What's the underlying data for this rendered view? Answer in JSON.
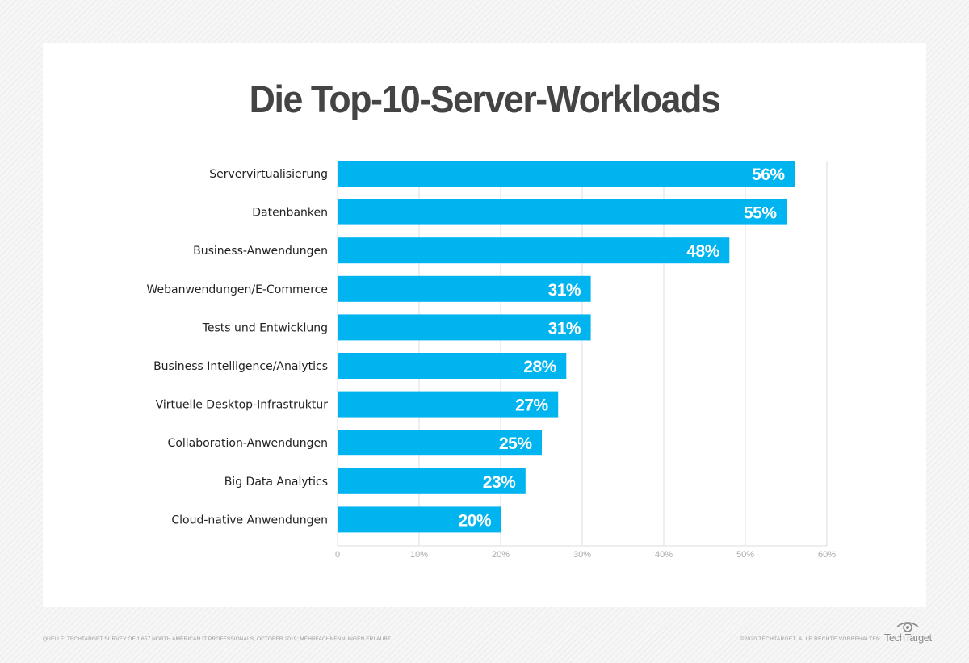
{
  "chart_data": {
    "type": "bar",
    "orientation": "horizontal",
    "title": "Die Top-10-Server-Workloads",
    "categories": [
      "Servervirtualisierung",
      "Datenbanken",
      "Business-Anwendungen",
      "Webanwendungen/E-Commerce",
      "Tests und Entwicklung",
      "Business Intelligence/Analytics",
      "Virtuelle Desktop-Infrastruktur",
      "Collaboration-Anwendungen",
      "Big Data Analytics",
      "Cloud-native Anwendungen"
    ],
    "values": [
      56,
      55,
      48,
      31,
      31,
      28,
      27,
      25,
      23,
      20
    ],
    "value_labels": [
      "56%",
      "55%",
      "48%",
      "31%",
      "31%",
      "28%",
      "27%",
      "25%",
      "23%",
      "20%"
    ],
    "xlabel": "",
    "ylabel": "",
    "xlim": [
      0,
      60
    ],
    "x_ticks": [
      0,
      10,
      20,
      30,
      40,
      50,
      60
    ],
    "x_tick_labels": [
      "0",
      "10%",
      "20%",
      "30%",
      "40%",
      "50%",
      "60%"
    ],
    "grid": true,
    "legend": "none",
    "bar_color": "#00b4ef"
  },
  "footer": {
    "source": "QUELLE: TECHTARGET SURVEY OF 1,657 NORTH AMERICAN IT PROFESSIONALS, OCTOBER 2019; MEHRFACHNENNUNGEN ERLAUBT",
    "copyright": "©2020 TECHTARGET. ALLE RECHTE VORBEHALTEN",
    "brand": "TechTarget"
  },
  "colors": {
    "bar": "#00b4ef",
    "title": "#444444",
    "label": "#222222",
    "tick": "#aaaaaa",
    "grid": "#dddddd"
  }
}
